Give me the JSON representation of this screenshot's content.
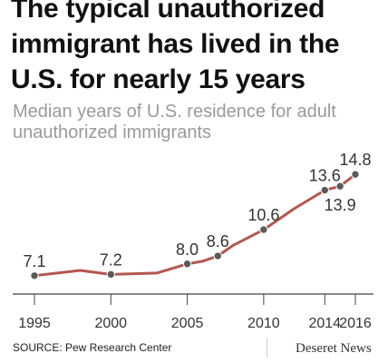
{
  "header": {
    "title": "The typical unauthorized immigrant has lived in the U.S. for nearly 15 years",
    "subtitle": "Median years of U.S. residence for adult unauthorized immigrants"
  },
  "footer": {
    "source": "SOURCE: Pew Research Center",
    "brand": "Deseret News"
  },
  "colors": {
    "line": "#b5574f",
    "marker": "#5a5a5a",
    "axis": "#444444",
    "label": "#333333"
  },
  "chart_data": {
    "type": "line",
    "title": "The typical unauthorized immigrant has lived in the U.S. for nearly 15 years",
    "subtitle": "Median years of U.S. residence for adult unauthorized immigrants",
    "xlabel": "",
    "ylabel": "",
    "xlim": [
      1995,
      2016
    ],
    "ylim": [
      5.5,
      15.5
    ],
    "x_ticks": [
      "1995",
      "2000",
      "2005",
      "2010",
      "2014",
      "2016"
    ],
    "grid": false,
    "series": [
      {
        "x": [
          1995,
          1998,
          2000,
          2003,
          2005,
          2006,
          2007,
          2008,
          2010,
          2012,
          2014,
          2015,
          2016
        ],
        "values": [
          7.1,
          7.5,
          7.2,
          7.3,
          8.0,
          8.2,
          8.6,
          9.4,
          10.6,
          12.2,
          13.6,
          13.9,
          14.8
        ]
      }
    ],
    "markers": [
      {
        "x": 1995,
        "value": 7.1,
        "label": "7.1",
        "label_pos": "above"
      },
      {
        "x": 2000,
        "value": 7.2,
        "label": "7.2",
        "label_pos": "above"
      },
      {
        "x": 2005,
        "value": 8.0,
        "label": "8.0",
        "label_pos": "above"
      },
      {
        "x": 2007,
        "value": 8.6,
        "label": "8.6",
        "label_pos": "above"
      },
      {
        "x": 2010,
        "value": 10.6,
        "label": "10.6",
        "label_pos": "above"
      },
      {
        "x": 2014,
        "value": 13.6,
        "label": "13.6",
        "label_pos": "above"
      },
      {
        "x": 2015,
        "value": 13.9,
        "label": "13.9",
        "label_pos": "below"
      },
      {
        "x": 2016,
        "value": 14.8,
        "label": "14.8",
        "label_pos": "above"
      }
    ]
  }
}
